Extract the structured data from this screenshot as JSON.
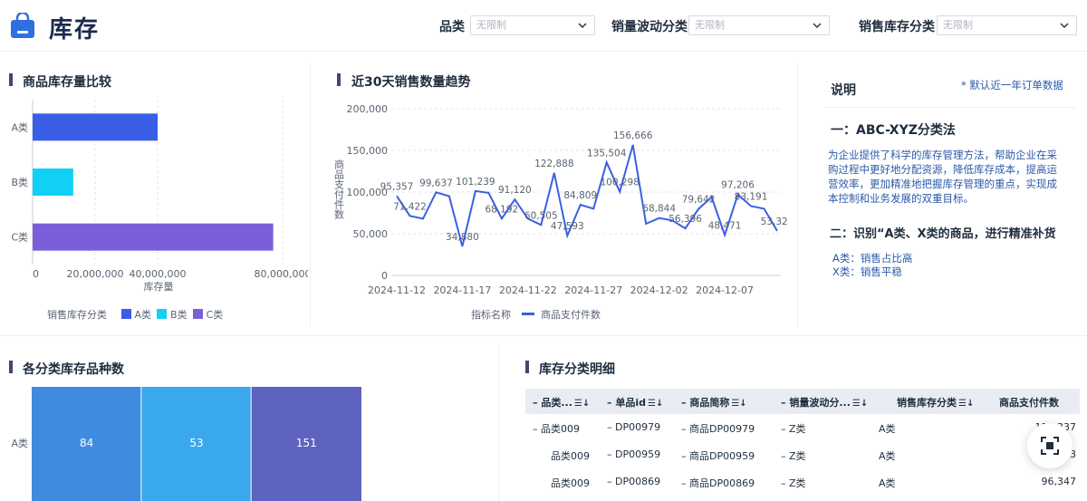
{
  "header": {
    "title": "库存",
    "filters": [
      {
        "label": "品类",
        "value": "无限制"
      },
      {
        "label": "销量波动分类",
        "value": "无限制"
      },
      {
        "label": "销售库存分类",
        "value": "无限制"
      }
    ]
  },
  "stock_compare": {
    "title": "商品库存量比较",
    "xlabel": "库存量",
    "legend_title": "销售库存分类"
  },
  "trend": {
    "title": "近30天销售数量趋势",
    "ylabel": "商品支付件数",
    "legend_title": "指标名称"
  },
  "notes": {
    "title": "说明",
    "hint": "* 默认近一年订单数据",
    "section1_title": "一：ABC-XYZ分类法",
    "section1_text": "为企业提供了科学的库存管理方法，帮助企业在采购过程中更好地分配资源，降低库存成本，提高运营效率，更加精准地把握库存管理的重点，实现成本控制和业务发展的双重目标。",
    "section2_title": "二：识别“A类、X类的商品，进行精准补货",
    "line1": "A类：销售占比高",
    "line2": "X类：销售平稳"
  },
  "variety": {
    "title": "各分类库存品种数"
  },
  "detail": {
    "title": "库存分类明细",
    "columns": [
      "品类...",
      "单品id",
      "商品简称",
      "销量波动分...",
      "销售库存分类",
      "商品支付件数"
    ],
    "rows": [
      {
        "cat": "品类009",
        "id": "DP00979",
        "name": "商品DP00979",
        "vol": "Z类",
        "stock": "A类",
        "qty": "110,337"
      },
      {
        "cat": "品类009",
        "id": "DP00959",
        "name": "商品DP00959",
        "vol": "Z类",
        "stock": "A类",
        "qty": "96,373"
      },
      {
        "cat": "品类009",
        "id": "DP00869",
        "name": "商品DP00869",
        "vol": "Z类",
        "stock": "A类",
        "qty": "96,347"
      }
    ]
  },
  "chart_data": [
    {
      "type": "bar",
      "orientation": "horizontal",
      "categories": [
        "A类",
        "B类",
        "C类"
      ],
      "values": [
        40000000,
        13000000,
        77000000
      ],
      "colors": [
        "#3a5fe6",
        "#12d0f5",
        "#7b5fd9"
      ],
      "xlabel": "库存量",
      "xlim": [
        0,
        80000000
      ],
      "ticks": [
        0,
        20000000,
        40000000,
        80000000
      ],
      "tick_labels": [
        "0",
        "20,000,000",
        "40,000,000",
        "80,000,000"
      ],
      "legend": {
        "title": "销售库存分类",
        "entries": [
          "A类",
          "B类",
          "C类"
        ],
        "placement": "bottom"
      }
    },
    {
      "type": "line",
      "x_tick_labels": [
        "2024-11-12",
        "2024-11-17",
        "2024-11-22",
        "2024-11-27",
        "2024-12-02",
        "2024-12-07"
      ],
      "x": [
        "2024-11-12",
        "2024-11-13",
        "2024-11-14",
        "2024-11-15",
        "2024-11-16",
        "2024-11-17",
        "2024-11-18",
        "2024-11-19",
        "2024-11-20",
        "2024-11-21",
        "2024-11-22",
        "2024-11-23",
        "2024-11-24",
        "2024-11-25",
        "2024-11-26",
        "2024-11-27",
        "2024-11-28",
        "2024-11-29",
        "2024-11-30",
        "2024-12-01",
        "2024-12-02",
        "2024-12-03",
        "2024-12-04",
        "2024-12-05",
        "2024-12-06",
        "2024-12-07",
        "2024-12-08",
        "2024-12-09",
        "2024-12-10",
        "2024-12-11"
      ],
      "series": [
        {
          "name": "商品支付件数",
          "color": "#3a5fe6",
          "values": [
            95357,
            71422,
            68000,
            99637,
            95000,
            34880,
            101239,
            99000,
            68192,
            91120,
            68000,
            60505,
            122888,
            47593,
            84809,
            80000,
            135504,
            100298,
            156666,
            62000,
            68844,
            66000,
            56396,
            79642,
            94000,
            48471,
            97206,
            83191,
            80000,
            53320
          ],
          "labels": {
            "0": "95,357",
            "1": "71,422",
            "3": "99,637",
            "5": "34,880",
            "6": "101,239",
            "8": "68,192",
            "9": "91,120",
            "11": "60,505",
            "12": "122,888",
            "13": "47,593",
            "14": "84,809",
            "16": "135,504",
            "17": "100,298",
            "18": "156,666",
            "20": "68,844",
            "22": "56,396",
            "23": "79,642",
            "25": "48,471",
            "26": "97,206",
            "27": "83,191",
            "29": "53,320"
          }
        }
      ],
      "ylim": [
        0,
        200000
      ],
      "y_ticks": [
        0,
        50000,
        100000,
        150000,
        200000
      ],
      "y_tick_labels": [
        "0",
        "50,000",
        "100,000",
        "150,000",
        "200,000"
      ],
      "ylabel": "商品支付件数",
      "legend": {
        "title": "指标名称",
        "entries": [
          "商品支付件数"
        ],
        "placement": "bottom"
      }
    },
    {
      "type": "bar",
      "orientation": "stacked-horizontal",
      "categories": [
        "A类"
      ],
      "segments": [
        84,
        53,
        151
      ],
      "segment_labels": [
        "84",
        "53",
        "151"
      ],
      "colors": [
        "#3f8be0",
        "#3aa8ec",
        "#5d63bf"
      ]
    }
  ]
}
